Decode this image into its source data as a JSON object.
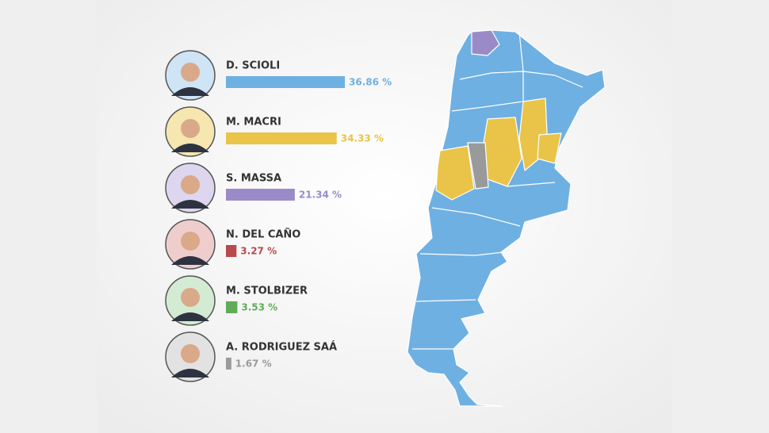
{
  "chart_data": {
    "type": "bar",
    "orientation": "horizontal",
    "categories": [
      "D. SCIOLI",
      "M. MACRI",
      "S. MASSA",
      "N. DEL CAÑO",
      "M. STOLBIZER",
      "A. RODRIGUEZ SAÁ"
    ],
    "values": [
      36.86,
      34.33,
      21.34,
      3.27,
      3.53,
      1.67
    ],
    "value_labels": [
      "36.86 %",
      "34.33 %",
      "21.34 %",
      "3.27 %",
      "3.53 %",
      "1.67 %"
    ],
    "colors": [
      "#6fb0e3",
      "#e9c449",
      "#9a8bc8",
      "#b8494c",
      "#5eac5a",
      "#9a9a9a"
    ]
  }
}
